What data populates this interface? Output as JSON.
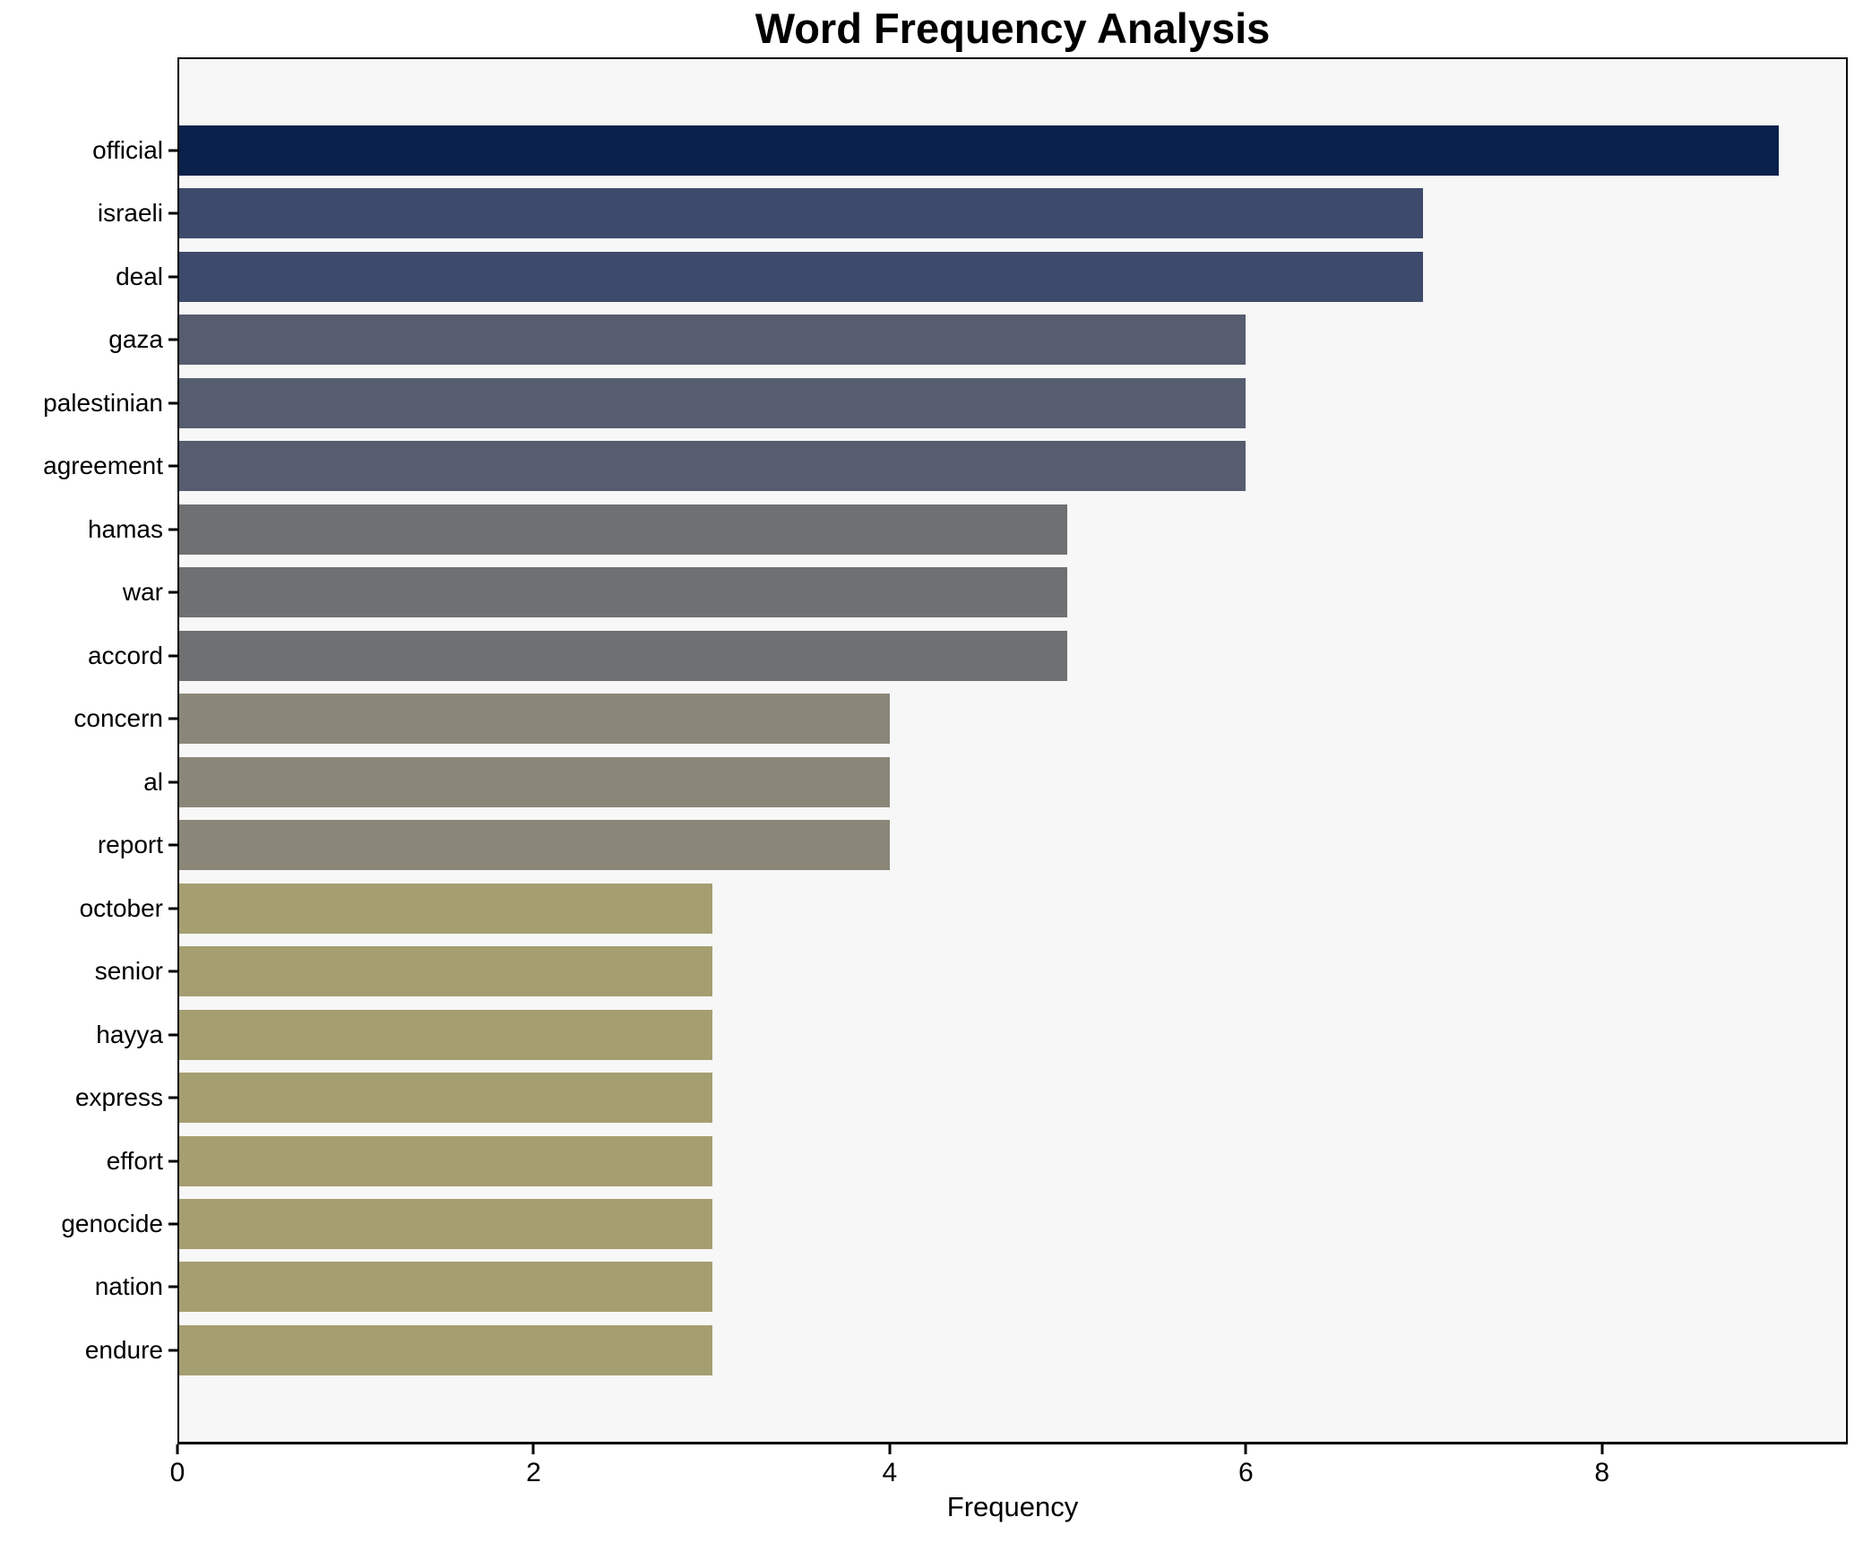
{
  "chart_data": {
    "type": "bar",
    "orientation": "horizontal",
    "title": "Word Frequency Analysis",
    "xlabel": "Frequency",
    "ylabel": "",
    "categories": [
      "official",
      "israeli",
      "deal",
      "gaza",
      "palestinian",
      "agreement",
      "hamas",
      "war",
      "accord",
      "concern",
      "al",
      "report",
      "october",
      "senior",
      "hayya",
      "express",
      "effort",
      "genocide",
      "nation",
      "endure"
    ],
    "values": [
      9,
      7,
      7,
      6,
      6,
      6,
      5,
      5,
      5,
      4,
      4,
      4,
      3,
      3,
      3,
      3,
      3,
      3,
      3,
      3
    ],
    "bar_colors": [
      "#09214b",
      "#3d4a6b",
      "#3d4a6b",
      "#565d6e",
      "#565d6e",
      "#565d6e",
      "#6e7071",
      "#6e7071",
      "#6e7071",
      "#8b8778",
      "#8b8778",
      "#8b8778",
      "#a59e71",
      "#a59e71",
      "#a59e71",
      "#a59e71",
      "#a59e71",
      "#a59e71",
      "#a59e71",
      "#a59e71"
    ],
    "xticks": [
      0,
      2,
      4,
      6,
      8
    ],
    "xlim": [
      0,
      9.38
    ],
    "grid": false,
    "legend": false,
    "bar_height_fraction": 0.8,
    "plot_background": "#f7f7f8",
    "figure_background": "#ffffff",
    "spine_color": "#000000",
    "title_color": "#000000",
    "tick_label_color": "#000000"
  }
}
